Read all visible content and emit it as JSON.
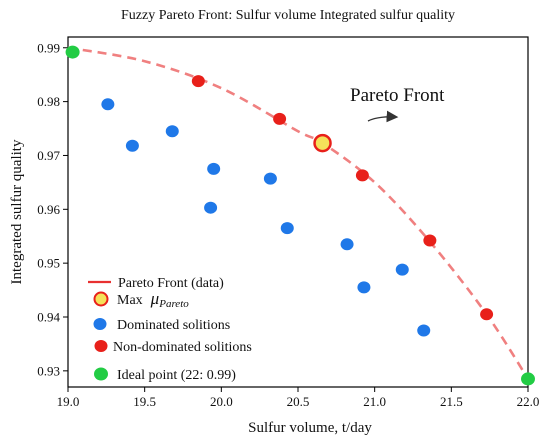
{
  "chart_data": {
    "type": "scatter",
    "title": "Fuzzy Pareto Front: Sulfur volume Integrated sulfur quality",
    "xlabel": "Sulfur volume, t/day",
    "ylabel": "Integrated sulfur quality",
    "xlim": [
      19.0,
      22.0
    ],
    "ylim": [
      0.927,
      0.992
    ],
    "xticks": [
      "19.0",
      "19.5",
      "20.0",
      "20.5",
      "21.0",
      "21.5",
      "22.0"
    ],
    "yticks": [
      "0.93",
      "0.94",
      "0.95",
      "0.96",
      "0.97",
      "0.98",
      "0.99"
    ],
    "grid": false,
    "legend_position": "bottom-left",
    "annotation": "Pareto Front",
    "colors": {
      "pareto_line": "#f08080",
      "max_fill": "#f5e15a",
      "max_edge": "#e8201a",
      "dominated": "#1f78e8",
      "non_dominated": "#e8201a",
      "ideal": "#22cc44"
    },
    "series": [
      {
        "name": "Pareto Front (data)",
        "kind": "curve",
        "x": [
          19.0,
          19.5,
          20.0,
          20.5,
          20.66,
          21.0,
          21.36,
          21.73,
          22.0
        ],
        "y": [
          0.99,
          0.9875,
          0.9825,
          0.9745,
          0.9723,
          0.965,
          0.954,
          0.9405,
          0.9285
        ]
      },
      {
        "name": "Max",
        "name_symbol": "μ",
        "name_subscript": "Pareto",
        "kind": "max",
        "x": [
          20.66
        ],
        "y": [
          0.9723
        ]
      },
      {
        "name": "Dominated solitions",
        "kind": "dominated",
        "x": [
          19.26,
          19.42,
          19.68,
          19.95,
          19.93,
          20.32,
          20.43,
          20.82,
          20.93,
          21.18,
          21.32
        ],
        "y": [
          0.9795,
          0.9718,
          0.9745,
          0.9675,
          0.9603,
          0.9657,
          0.9565,
          0.9535,
          0.9455,
          0.9488,
          0.9375
        ]
      },
      {
        "name": "Non-dominated solitions",
        "kind": "non_dominated",
        "x": [
          19.85,
          20.38,
          20.92,
          21.36,
          21.73
        ],
        "y": [
          0.9838,
          0.9768,
          0.9663,
          0.9542,
          0.9405
        ]
      },
      {
        "name": "Ideal point (22: 0.99)",
        "kind": "ideal",
        "x": [
          19.03,
          22.0
        ],
        "y": [
          0.9892,
          0.9285
        ]
      }
    ]
  }
}
